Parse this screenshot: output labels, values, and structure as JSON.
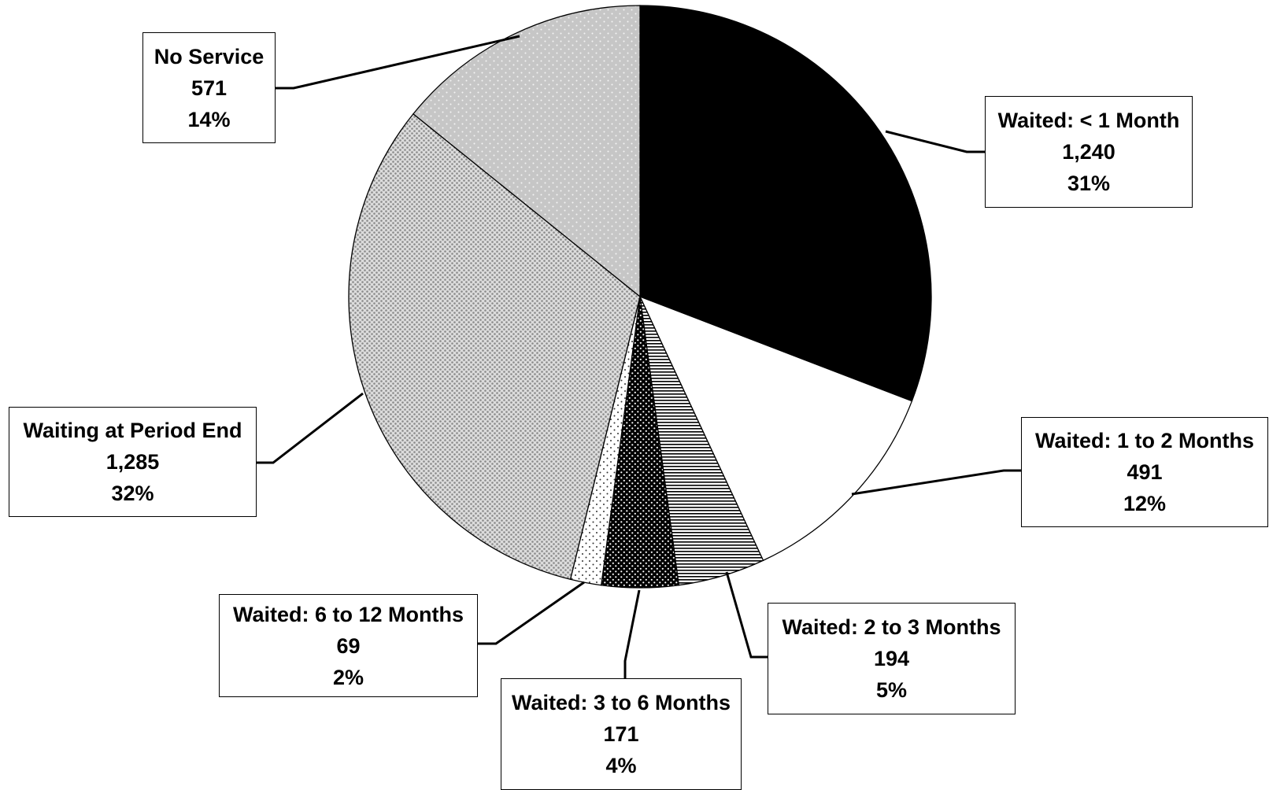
{
  "chart_data": {
    "type": "pie",
    "title": "",
    "legend": "none",
    "slices": [
      {
        "label": "Waited: < 1 Month",
        "value": 1240,
        "value_label": "1,240",
        "percent_label": "31%",
        "fill": "#000000",
        "pattern": "solid"
      },
      {
        "label": "Waited: 1 to 2 Months",
        "value": 491,
        "value_label": "491",
        "percent_label": "12%",
        "fill": "#ffffff",
        "pattern": "solid"
      },
      {
        "label": "Waited: 2 to 3 Months",
        "value": 194,
        "value_label": "194",
        "percent_label": "5%",
        "fill": "#ffffff",
        "pattern": "horizontal-lines"
      },
      {
        "label": "Waited: 3 to 6 Months",
        "value": 171,
        "value_label": "171",
        "percent_label": "4%",
        "fill": "#000000",
        "pattern": "white-dots-on-black"
      },
      {
        "label": "Waited: 6 to 12 Months",
        "value": 69,
        "value_label": "69",
        "percent_label": "2%",
        "fill": "#ffffff",
        "pattern": "sparse-dots"
      },
      {
        "label": "Waiting at Period End",
        "value": 1285,
        "value_label": "1,285",
        "percent_label": "32%",
        "fill": "#e3e3e3",
        "pattern": "dense-gray-dots"
      },
      {
        "label": "No Service",
        "value": 571,
        "value_label": "571",
        "percent_label": "14%",
        "fill": "#c8c8c8",
        "pattern": "light-dots-on-gray"
      }
    ]
  }
}
